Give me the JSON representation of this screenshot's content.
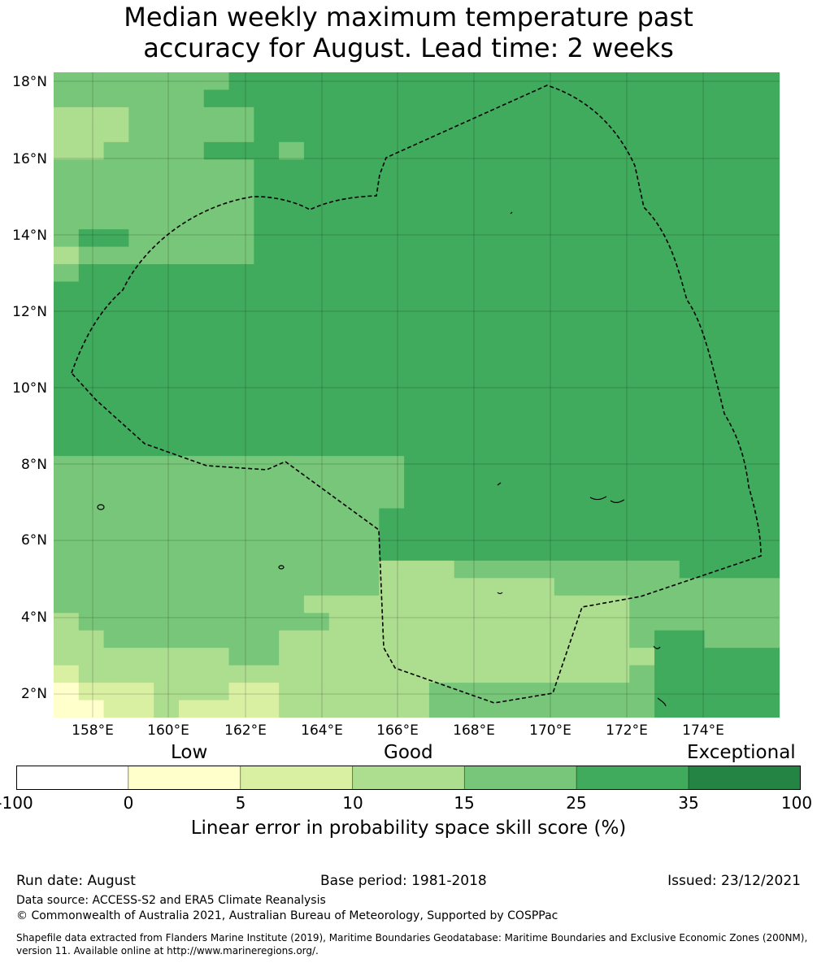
{
  "title_line1": "Median weekly maximum temperature past",
  "title_line2": "accuracy for August. Lead time: 2 weeks",
  "map": {
    "lat_ticks": [
      "18°N",
      "16°N",
      "14°N",
      "12°N",
      "10°N",
      "8°N",
      "6°N",
      "4°N",
      "2°N"
    ],
    "lon_ticks": [
      "158°E",
      "160°E",
      "162°E",
      "164°E",
      "166°E",
      "168°E",
      "170°E",
      "172°E",
      "174°E"
    ],
    "legend_colors": [
      "#ffffff",
      "#ffffcc",
      "#d9f0a3",
      "#addd8e",
      "#78c679",
      "#41ab5d",
      "#238443"
    ],
    "grid": [
      "44444445555555555555555555555",
      "44444455555555555555555555555",
      "33344444555555555555555555555",
      "33344444555555555555555555555",
      "33444455545555555555555555555",
      "44444444555555555555555555555",
      "44444444555555555555555555555",
      "44444444555555555555555555555",
      "44444444555555555555555555555",
      "45544444555555555555555555555",
      "34444444555555555555555555555",
      "45555555555555555555555555555",
      "55555555555555555555555555555",
      "55555555555555555555555555555",
      "55555555555555555555555555555",
      "55555555555555555555555555555",
      "55555555555555555555555555555",
      "55555555555555555555555555555",
      "55555555555555555555555555555",
      "55555555555555555555555555555",
      "55555555555555555555555555555",
      "55555555555555555555555555555",
      "44444444444444555555555555555",
      "44444444444444555555555555555",
      "44444444444444555555555555555",
      "44444444444445555555555555555",
      "44444444444445555555555555555",
      "44444444444445555555555555555",
      "44444444444443334444444445555",
      "44444444444443333333444444444",
      "44444444443333333333333444444",
      "34444444444333333333333444444",
      "33444444433333333333333455444",
      "33333334433333333333333355555",
      "23333333333333333333333455555",
      "12223332233333344444444455555",
      "11223222233333344444444455555"
    ]
  },
  "legend": {
    "category_low": "Low",
    "category_good": "Good",
    "category_exceptional": "Exceptional",
    "ticks": [
      "-100",
      "0",
      "5",
      "10",
      "15",
      "25",
      "35",
      "100"
    ],
    "label": "Linear error in probability space skill score (%)"
  },
  "footer": {
    "run_date": "Run date: August",
    "base_period": "Base period: 1981-2018",
    "issued": "Issued: 23/12/2021",
    "data_source": "Data source: ACCESS-S2 and ERA5 Climate Reanalysis",
    "copyright": "© Commonwealth of Australia 2021, Australian Bureau of Meteorology, Supported by COSPPac",
    "shapefile_1": "Shapefile data extracted from Flanders Marine Institute (2019), Maritime Boundaries Geodatabase: Maritime Boundaries and Exclusive Economic Zones (200NM),",
    "shapefile_2": "version 11. Available online at http://www.marineregions.org/."
  }
}
